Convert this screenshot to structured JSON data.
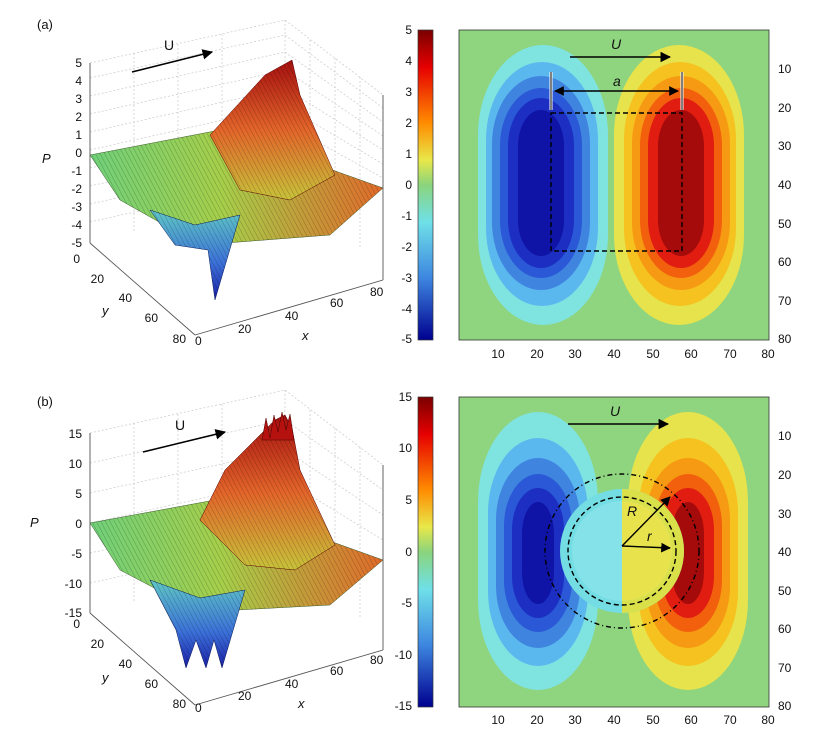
{
  "figure": {
    "panels": [
      {
        "id": "a",
        "label": "(a)",
        "surface": {
          "z_label": "P",
          "x_label": "x",
          "y_label": "y",
          "z_ticks": [
            "5",
            "4",
            "3",
            "2",
            "1",
            "0",
            "-1",
            "-2",
            "-3",
            "-4",
            "-5"
          ],
          "x_ticks": [
            "0",
            "20",
            "40",
            "60",
            "80"
          ],
          "y_ticks": [
            "0",
            "20",
            "40",
            "60",
            "80"
          ],
          "flow_label": "U"
        },
        "map": {
          "colorbar_ticks": [
            "5",
            "4",
            "3",
            "2",
            "1",
            "0",
            "-1",
            "-2",
            "-3",
            "-4",
            "-5"
          ],
          "x_ticks": [
            "10",
            "20",
            "30",
            "40",
            "50",
            "60",
            "70",
            "80"
          ],
          "y_ticks": [
            "10",
            "20",
            "30",
            "40",
            "50",
            "60",
            "70",
            "80"
          ],
          "flow_label": "U",
          "span_label": "a"
        }
      },
      {
        "id": "b",
        "label": "(b)",
        "surface": {
          "z_label": "P",
          "x_label": "x",
          "y_label": "y",
          "z_ticks": [
            "15",
            "10",
            "5",
            "0",
            "-5",
            "-10",
            "-15"
          ],
          "x_ticks": [
            "0",
            "20",
            "40",
            "60",
            "80"
          ],
          "y_ticks": [
            "0",
            "20",
            "40",
            "60",
            "80"
          ],
          "flow_label": "U"
        },
        "map": {
          "colorbar_ticks": [
            "15",
            "10",
            "5",
            "0",
            "-5",
            "-10",
            "-15"
          ],
          "x_ticks": [
            "10",
            "20",
            "30",
            "40",
            "50",
            "60",
            "70",
            "80"
          ],
          "y_ticks": [
            "10",
            "20",
            "30",
            "40",
            "50",
            "60",
            "70",
            "80"
          ],
          "flow_label": "U",
          "outer_radius_label": "R",
          "inner_radius_label": "r"
        }
      }
    ]
  },
  "chart_data": [
    {
      "panel": "a-surface",
      "type": "surface",
      "x_range": [
        0,
        80
      ],
      "y_range": [
        0,
        80
      ],
      "z_range": [
        -5,
        5
      ],
      "zlabel": "P",
      "xlabel": "x",
      "ylabel": "y",
      "peak": {
        "x": 57,
        "y": 40,
        "z": 5
      },
      "trough": {
        "x": 23,
        "y": 40,
        "z": -5
      },
      "grid": true
    },
    {
      "panel": "a-map",
      "type": "heatmap",
      "x_range": [
        0,
        80
      ],
      "y_range": [
        0,
        80
      ],
      "color_range": [
        -5,
        5
      ],
      "colormap": "jet",
      "min_center": [
        24,
        40
      ],
      "max_center": [
        58,
        40
      ],
      "dashed_rectangle": {
        "x": [
          23,
          58
        ],
        "y": [
          22,
          58
        ]
      },
      "annotations": [
        "U",
        "a"
      ]
    },
    {
      "panel": "b-surface",
      "type": "surface",
      "x_range": [
        0,
        80
      ],
      "y_range": [
        0,
        80
      ],
      "z_range": [
        -15,
        15
      ],
      "zlabel": "P",
      "xlabel": "x",
      "ylabel": "y",
      "peak": {
        "x": 62,
        "y": 40,
        "z": 15
      },
      "trough": {
        "x": 22,
        "y": 40,
        "z": -15
      },
      "grid": true
    },
    {
      "panel": "b-map",
      "type": "heatmap",
      "x_range": [
        0,
        80
      ],
      "y_range": [
        0,
        80
      ],
      "color_range": [
        -15,
        15
      ],
      "colormap": "jet",
      "min_center": [
        24,
        42
      ],
      "max_center": [
        61,
        42
      ],
      "circle_center": [
        42,
        42
      ],
      "outer_radius": 20,
      "inner_radius": 16,
      "annotations": [
        "U",
        "R",
        "r"
      ]
    }
  ]
}
